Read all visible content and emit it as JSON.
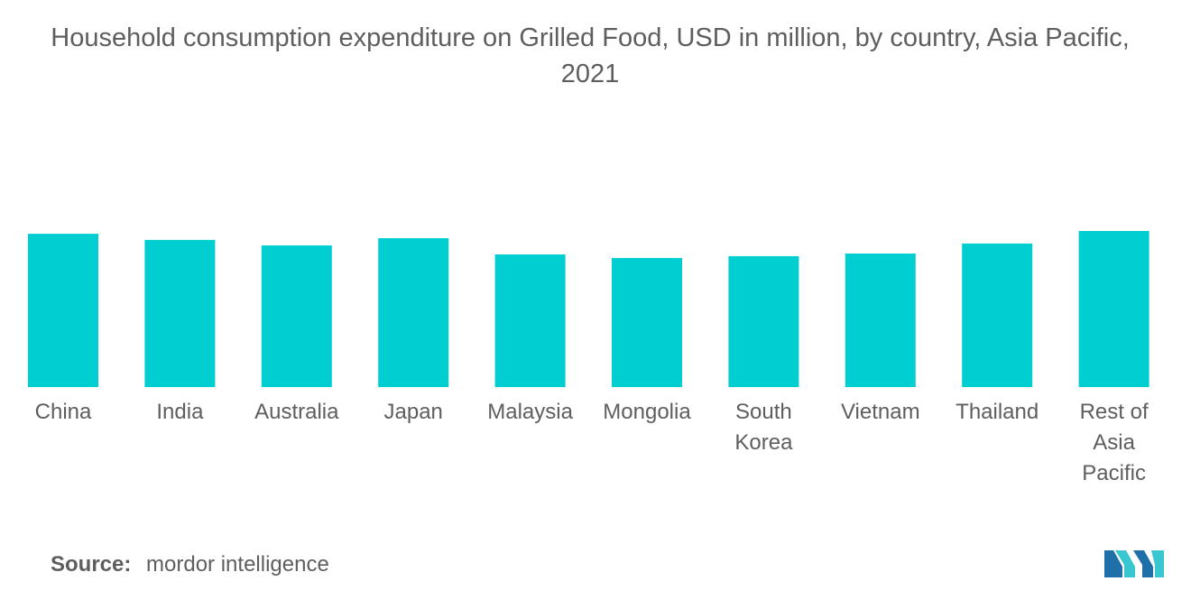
{
  "title": "Household consumption expenditure on Grilled Food, USD in million, by country, Asia Pacific, 2021",
  "source": {
    "label": "Source:",
    "text": "mordor intelligence"
  },
  "colors": {
    "bar": "#00CED1",
    "text": "#5e5e5e",
    "logo_dark": "#1F6FA8",
    "logo_light": "#38C7D1"
  },
  "logo": {
    "icon": "mordor-intelligence-logo"
  },
  "chart_data": {
    "type": "bar",
    "categories": [
      "China",
      "India",
      "Australia",
      "Japan",
      "Malaysia",
      "Mongolia",
      "South Korea",
      "Vietnam",
      "Thailand",
      "Rest of Asia Pacific"
    ],
    "category_label_lines": [
      [
        "China"
      ],
      [
        "India"
      ],
      [
        "Australia"
      ],
      [
        "Japan"
      ],
      [
        "Malaysia"
      ],
      [
        "Mongolia"
      ],
      [
        "South",
        "Korea"
      ],
      [
        "Vietnam"
      ],
      [
        "Thailand"
      ],
      [
        "Rest of",
        "Asia",
        "Pacific"
      ]
    ],
    "values": [
      100,
      96,
      92.4,
      97.1,
      86.5,
      84.2,
      85.4,
      87.1,
      93.6,
      101.8
    ],
    "value_units": "relative (no axis printed)",
    "title": "Household consumption expenditure on Grilled Food, USD in million, by country, Asia Pacific, 2021",
    "xlabel": "",
    "ylabel": "",
    "ylim": [
      0,
      101.8
    ],
    "grid": false,
    "legend": "none"
  }
}
